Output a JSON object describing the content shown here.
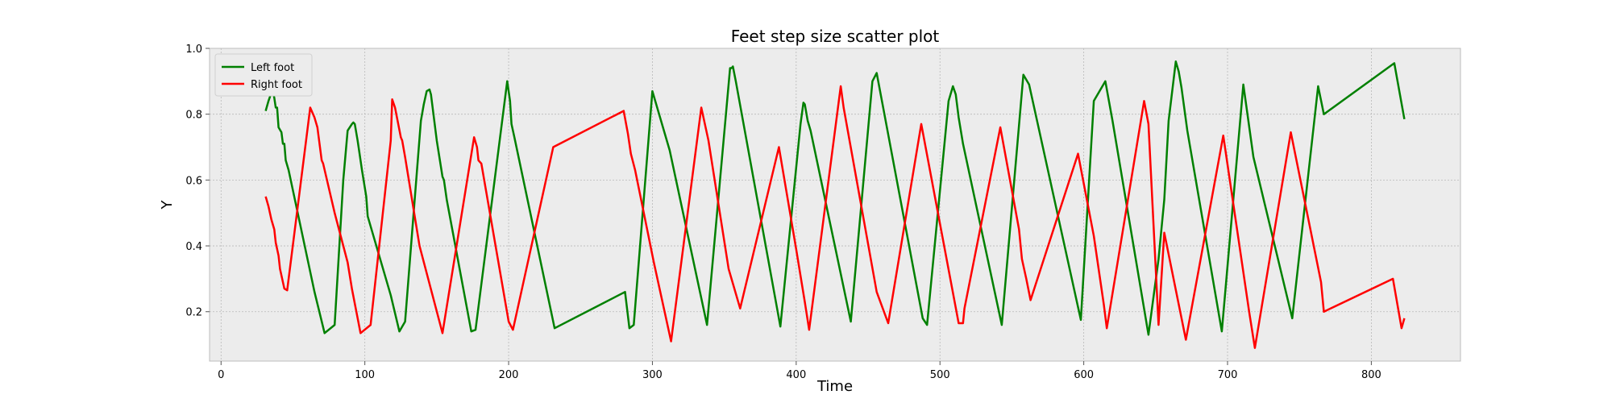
{
  "chart_data": {
    "type": "line",
    "title": "Feet step size scatter plot",
    "xlabel": "Time",
    "ylabel": "Y",
    "xlim": [
      -8,
      862
    ],
    "ylim": [
      0.05,
      1.0
    ],
    "xticks": [
      0,
      100,
      200,
      300,
      400,
      500,
      600,
      700,
      800
    ],
    "yticks": [
      0.2,
      0.4,
      0.6,
      0.8,
      1.0
    ],
    "grid": true,
    "legend_position": "top-left",
    "background": "#ececec",
    "series": [
      {
        "name": "Left foot",
        "color": "#008000",
        "points": [
          [
            31,
            0.81
          ],
          [
            33,
            0.84
          ],
          [
            35,
            0.865
          ],
          [
            36,
            0.87
          ],
          [
            37,
            0.85
          ],
          [
            38,
            0.82
          ],
          [
            39,
            0.82
          ],
          [
            40,
            0.76
          ],
          [
            42,
            0.745
          ],
          [
            43,
            0.71
          ],
          [
            44,
            0.71
          ],
          [
            45,
            0.66
          ],
          [
            47,
            0.63
          ],
          [
            65,
            0.26
          ],
          [
            72,
            0.135
          ],
          [
            79,
            0.16
          ],
          [
            85,
            0.6
          ],
          [
            87,
            0.7
          ],
          [
            88,
            0.75
          ],
          [
            91,
            0.77
          ],
          [
            92,
            0.775
          ],
          [
            93,
            0.77
          ],
          [
            95,
            0.72
          ],
          [
            96,
            0.69
          ],
          [
            98,
            0.63
          ],
          [
            101,
            0.55
          ],
          [
            102,
            0.49
          ],
          [
            118,
            0.25
          ],
          [
            124,
            0.14
          ],
          [
            128,
            0.17
          ],
          [
            139,
            0.78
          ],
          [
            141,
            0.83
          ],
          [
            143,
            0.87
          ],
          [
            145,
            0.875
          ],
          [
            146,
            0.86
          ],
          [
            150,
            0.72
          ],
          [
            154,
            0.61
          ],
          [
            155,
            0.6
          ],
          [
            157,
            0.54
          ],
          [
            174,
            0.14
          ],
          [
            177,
            0.145
          ],
          [
            199,
            0.9
          ],
          [
            201,
            0.84
          ],
          [
            202,
            0.77
          ],
          [
            204,
            0.73
          ],
          [
            232,
            0.15
          ],
          [
            281,
            0.26
          ],
          [
            284,
            0.15
          ],
          [
            287,
            0.16
          ],
          [
            300,
            0.87
          ],
          [
            312,
            0.69
          ],
          [
            338,
            0.16
          ],
          [
            354,
            0.94
          ],
          [
            355,
            0.94
          ],
          [
            356,
            0.945
          ],
          [
            358,
            0.9
          ],
          [
            389,
            0.155
          ],
          [
            403,
            0.77
          ],
          [
            405,
            0.835
          ],
          [
            406,
            0.83
          ],
          [
            408,
            0.78
          ],
          [
            410,
            0.75
          ],
          [
            438,
            0.17
          ],
          [
            453,
            0.9
          ],
          [
            456,
            0.925
          ],
          [
            488,
            0.18
          ],
          [
            491,
            0.16
          ],
          [
            506,
            0.84
          ],
          [
            509,
            0.885
          ],
          [
            511,
            0.86
          ],
          [
            513,
            0.79
          ],
          [
            516,
            0.71
          ],
          [
            543,
            0.16
          ],
          [
            558,
            0.92
          ],
          [
            562,
            0.89
          ],
          [
            598,
            0.175
          ],
          [
            607,
            0.84
          ],
          [
            615,
            0.9
          ],
          [
            620,
            0.78
          ],
          [
            645,
            0.13
          ],
          [
            652,
            0.36
          ],
          [
            656,
            0.54
          ],
          [
            659,
            0.78
          ],
          [
            664,
            0.96
          ],
          [
            666,
            0.93
          ],
          [
            668,
            0.88
          ],
          [
            672,
            0.75
          ],
          [
            696,
            0.14
          ],
          [
            711,
            0.89
          ],
          [
            718,
            0.67
          ],
          [
            745,
            0.18
          ],
          [
            763,
            0.885
          ],
          [
            767,
            0.8
          ],
          [
            816,
            0.955
          ],
          [
            823,
            0.785
          ]
        ]
      },
      {
        "name": "Right foot",
        "color": "#ff0000",
        "points": [
          [
            31,
            0.55
          ],
          [
            33,
            0.52
          ],
          [
            35,
            0.48
          ],
          [
            37,
            0.45
          ],
          [
            38,
            0.41
          ],
          [
            40,
            0.37
          ],
          [
            41,
            0.33
          ],
          [
            43,
            0.29
          ],
          [
            44,
            0.27
          ],
          [
            46,
            0.265
          ],
          [
            62,
            0.82
          ],
          [
            65,
            0.79
          ],
          [
            67,
            0.76
          ],
          [
            70,
            0.66
          ],
          [
            71,
            0.65
          ],
          [
            79,
            0.5
          ],
          [
            88,
            0.35
          ],
          [
            91,
            0.27
          ],
          [
            97,
            0.135
          ],
          [
            104,
            0.16
          ],
          [
            118,
            0.72
          ],
          [
            119,
            0.845
          ],
          [
            121,
            0.82
          ],
          [
            125,
            0.73
          ],
          [
            126,
            0.72
          ],
          [
            128,
            0.67
          ],
          [
            138,
            0.4
          ],
          [
            154,
            0.135
          ],
          [
            176,
            0.73
          ],
          [
            178,
            0.7
          ],
          [
            179,
            0.66
          ],
          [
            181,
            0.65
          ],
          [
            200,
            0.17
          ],
          [
            203,
            0.145
          ],
          [
            231,
            0.7
          ],
          [
            280,
            0.81
          ],
          [
            283,
            0.74
          ],
          [
            285,
            0.68
          ],
          [
            288,
            0.63
          ],
          [
            301,
            0.35
          ],
          [
            313,
            0.11
          ],
          [
            334,
            0.82
          ],
          [
            339,
            0.72
          ],
          [
            353,
            0.33
          ],
          [
            361,
            0.21
          ],
          [
            388,
            0.7
          ],
          [
            400,
            0.39
          ],
          [
            406,
            0.23
          ],
          [
            409,
            0.145
          ],
          [
            431,
            0.885
          ],
          [
            433,
            0.82
          ],
          [
            456,
            0.26
          ],
          [
            464,
            0.165
          ],
          [
            487,
            0.77
          ],
          [
            513,
            0.165
          ],
          [
            516,
            0.165
          ],
          [
            517,
            0.21
          ],
          [
            542,
            0.76
          ],
          [
            555,
            0.45
          ],
          [
            557,
            0.36
          ],
          [
            560,
            0.3
          ],
          [
            563,
            0.235
          ],
          [
            596,
            0.68
          ],
          [
            607,
            0.43
          ],
          [
            614,
            0.22
          ],
          [
            616,
            0.15
          ],
          [
            642,
            0.84
          ],
          [
            645,
            0.77
          ],
          [
            652,
            0.16
          ],
          [
            656,
            0.44
          ],
          [
            671,
            0.115
          ],
          [
            697,
            0.735
          ],
          [
            715,
            0.2
          ],
          [
            719,
            0.09
          ],
          [
            744,
            0.745
          ],
          [
            765,
            0.29
          ],
          [
            767,
            0.2
          ],
          [
            815,
            0.3
          ],
          [
            821,
            0.15
          ],
          [
            823,
            0.18
          ]
        ]
      }
    ]
  }
}
